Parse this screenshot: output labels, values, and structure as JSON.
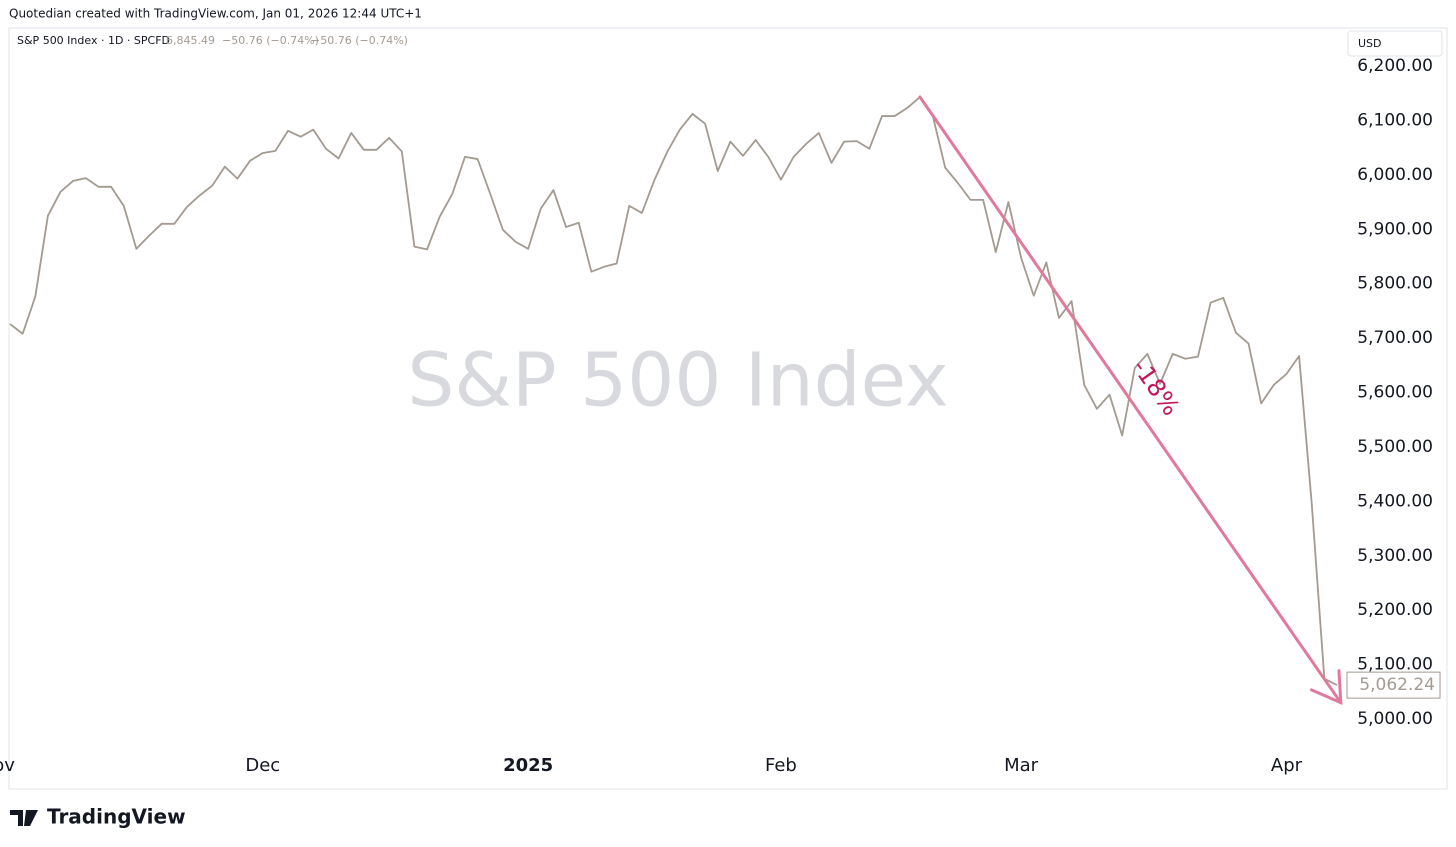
{
  "header": {
    "credit": "Quotedian created with TradingView.com, Jan 01, 2026 12:44 UTC+1",
    "symbol": "S&P 500 Index · 1D · SPCFD",
    "price": "6,845.49",
    "change": "−50.76 (−0.74%)",
    "change2": "−50.76 (−0.74%)",
    "currency": "USD",
    "logo": "TradingView"
  },
  "chart_data": {
    "type": "line",
    "title": "S&P 500 Index",
    "series": [
      {
        "name": "S&P 500 Index",
        "color": "#a39a90",
        "values": [
          5726,
          5708,
          5776,
          5925,
          5969,
          5989,
          5994,
          5978,
          5978,
          5943,
          5864,
          5888,
          5910,
          5910,
          5941,
          5962,
          5980,
          6015,
          5993,
          6026,
          6040,
          6044,
          6081,
          6070,
          6083,
          6048,
          6030,
          6077,
          6046,
          6046,
          6068,
          6043,
          5868,
          5863,
          5923,
          5965,
          6033,
          6029,
          5965,
          5899,
          5877,
          5864,
          5938,
          5972,
          5904,
          5912,
          5822,
          5831,
          5837,
          5943,
          5930,
          5991,
          6042,
          6083,
          6112,
          6094,
          6007,
          6061,
          6035,
          6064,
          6033,
          5991,
          6033,
          6057,
          6077,
          6022,
          6061,
          6062,
          6048,
          6108,
          6108,
          6123,
          6143,
          6110,
          6013,
          5985,
          5954,
          5954,
          5858,
          5950,
          5848,
          5778,
          5839,
          5737,
          5768,
          5614,
          5570,
          5596,
          5521,
          5645,
          5671,
          5616,
          5671,
          5662,
          5666,
          5765,
          5774,
          5710,
          5690,
          5580,
          5614,
          5634,
          5667,
          5396,
          5074,
          5062.24
        ]
      }
    ],
    "last_value_label": "5,062.24",
    "xlim": [
      0,
      105
    ],
    "xticks": [
      {
        "value": -1,
        "label": "Nov"
      },
      {
        "value": 20,
        "label": "Dec"
      },
      {
        "value": 41,
        "label": "2025"
      },
      {
        "value": 61,
        "label": "Feb"
      },
      {
        "value": 80,
        "label": "Mar"
      },
      {
        "value": 101,
        "label": "Apr"
      }
    ],
    "ylim": [
      5000,
      6200
    ],
    "yticks": [
      {
        "value": 5000,
        "label": "5,000.00"
      },
      {
        "value": 5100,
        "label": "5,100.00"
      },
      {
        "value": 5200,
        "label": "5,200.00"
      },
      {
        "value": 5300,
        "label": "5,300.00"
      },
      {
        "value": 5400,
        "label": "5,400.00"
      },
      {
        "value": 5500,
        "label": "5,500.00"
      },
      {
        "value": 5600,
        "label": "5,600.00"
      },
      {
        "value": 5700,
        "label": "5,700.00"
      },
      {
        "value": 5800,
        "label": "5,800.00"
      },
      {
        "value": 5900,
        "label": "5,900.00"
      },
      {
        "value": 6000,
        "label": "6,000.00"
      },
      {
        "value": 6100,
        "label": "6,100.00"
      },
      {
        "value": 6200,
        "label": "6,200.00"
      }
    ],
    "annotation": {
      "text": "-18%",
      "color": "#e07a9b",
      "text_color": "#c2185b",
      "x1": 72,
      "y1": 6143,
      "x2": 105.3,
      "y2": 5030
    }
  }
}
